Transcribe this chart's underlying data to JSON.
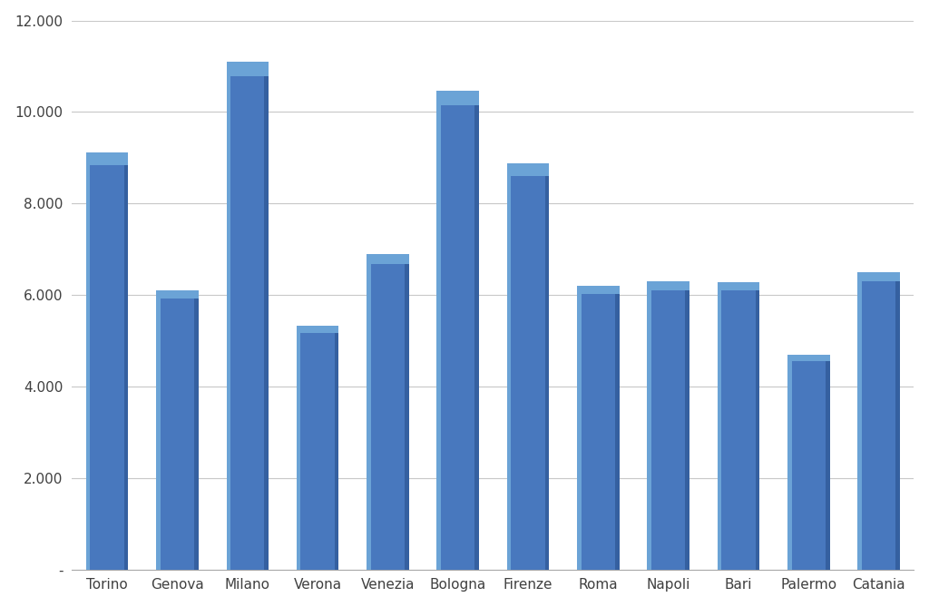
{
  "categories": [
    "Torino",
    "Genova",
    "Milano",
    "Verona",
    "Venezia",
    "Bologna",
    "Firenze",
    "Roma",
    "Napoli",
    "Bari",
    "Palermo",
    "Catania"
  ],
  "values": [
    9120,
    6110,
    11110,
    5330,
    6890,
    10460,
    8870,
    6200,
    6300,
    6290,
    4700,
    6490
  ],
  "bar_color_main": "#4878BE",
  "bar_color_light": "#6BA3D6",
  "bar_color_dark": "#3560A0",
  "ylim": [
    0,
    12000
  ],
  "yticks": [
    0,
    2000,
    4000,
    6000,
    8000,
    10000,
    12000
  ],
  "ytick_labels": [
    "-",
    "2.000",
    "4.000",
    "6.000",
    "8.000",
    "10.000",
    "12.000"
  ],
  "background_color": "#FFFFFF",
  "grid_color": "#C8C8C8",
  "tick_fontsize": 11,
  "axis_label_color": "#404040"
}
